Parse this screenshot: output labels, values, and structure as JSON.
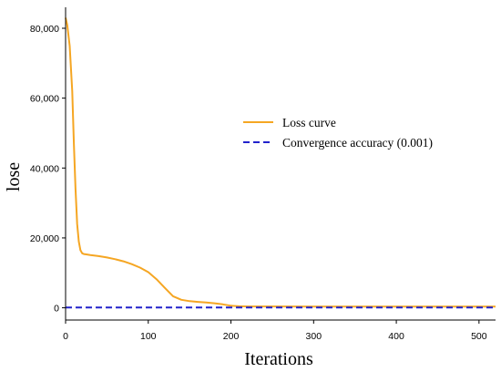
{
  "chart_data": {
    "type": "line",
    "title": "",
    "xlabel": "Iterations",
    "ylabel": "lose",
    "xlim": [
      0,
      520
    ],
    "ylim": [
      -3500,
      86000
    ],
    "x_ticks": [
      0,
      100,
      200,
      300,
      400,
      500
    ],
    "x_tick_labels": [
      "0",
      "100",
      "200",
      "300",
      "400",
      "500"
    ],
    "y_ticks": [
      0,
      20000,
      40000,
      60000,
      80000
    ],
    "y_tick_labels": [
      "0",
      "20,000",
      "40,000",
      "60,000",
      "80,000"
    ],
    "grid": false,
    "legend_position": "center-right",
    "series": [
      {
        "name": "Loss curve",
        "color": "#f5a623",
        "style": "solid",
        "x": [
          0,
          2,
          5,
          8,
          10,
          12,
          14,
          16,
          18,
          20,
          22,
          25,
          30,
          40,
          50,
          60,
          70,
          80,
          90,
          100,
          110,
          120,
          130,
          140,
          150,
          160,
          170,
          180,
          190,
          200,
          210,
          220,
          250,
          300,
          400,
          500,
          520
        ],
        "y": [
          83000,
          81000,
          75000,
          62000,
          47000,
          34000,
          24000,
          19000,
          16500,
          15600,
          15400,
          15300,
          15100,
          14800,
          14400,
          13900,
          13300,
          12500,
          11500,
          10200,
          8200,
          5700,
          3300,
          2300,
          1900,
          1700,
          1500,
          1300,
          1000,
          600,
          450,
          400,
          380,
          370,
          360,
          350,
          350
        ]
      },
      {
        "name": "Convergence accuracy (0.001)",
        "color": "#2222cc",
        "style": "dashed",
        "x": [
          0,
          520
        ],
        "y": [
          100,
          100
        ]
      }
    ]
  }
}
